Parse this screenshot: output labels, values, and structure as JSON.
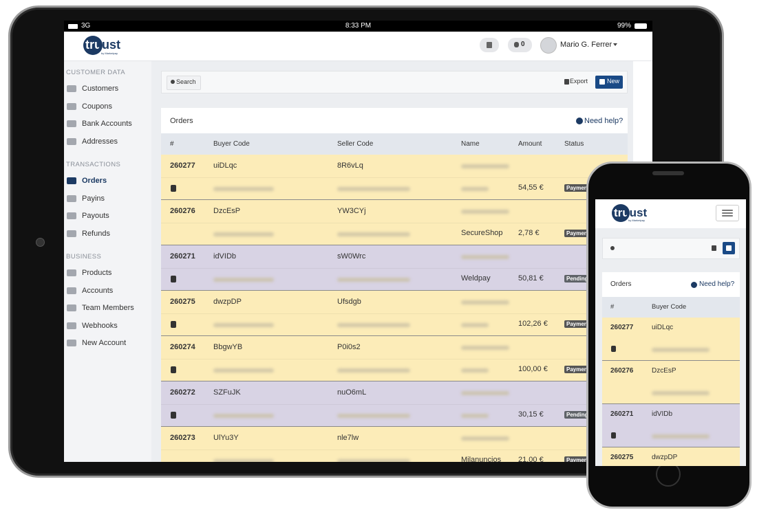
{
  "tablet": {
    "status_bar": {
      "signal": "3G",
      "time": "8:33 PM",
      "battery": "99%"
    },
    "header": {
      "logo": "truust",
      "logo_sub": "by Marketpay",
      "notifications": "0",
      "user": "Mario G. Ferrer"
    },
    "sidebar": [
      {
        "title": "CUSTOMER DATA",
        "items": [
          "Customers",
          "Coupons",
          "Bank Accounts",
          "Addresses"
        ]
      },
      {
        "title": "TRANSACTIONS",
        "items": [
          "Orders",
          "Payins",
          "Payouts",
          "Refunds"
        ],
        "active": 0
      },
      {
        "title": "BUSINESS",
        "items": [
          "Products",
          "Accounts",
          "Team Members",
          "Webhooks",
          "New Account"
        ]
      }
    ],
    "toolbar": {
      "search": "Search",
      "export": "Export",
      "new": "New"
    },
    "orders": {
      "title": "Orders",
      "help": "Need help?",
      "columns": [
        "#",
        "Buyer Code",
        "Seller Code",
        "Name",
        "Amount",
        "Status"
      ],
      "rows": [
        {
          "id": "260277",
          "buyer": "uiDLqc",
          "seller": "8R6vLq",
          "icon": true,
          "amount": "54,55 €",
          "status": "Payment"
        },
        {
          "id": "260276",
          "buyer": "DzcEsP",
          "seller": "YW3CYj",
          "icon": false,
          "name": "SecureShop",
          "amount": "2,78 €",
          "status": "Payment"
        },
        {
          "id": "260271",
          "buyer": "idVIDb",
          "seller": "sW0Wrc",
          "icon": true,
          "name": "Weldpay",
          "amount": "50,81 €",
          "status": "Pending"
        },
        {
          "id": "260275",
          "buyer": "dwzpDP",
          "seller": "Ufsdgb",
          "icon": true,
          "amount": "102,26 €",
          "status": "Payment"
        },
        {
          "id": "260274",
          "buyer": "BbgwYB",
          "seller": "P0i0s2",
          "icon": true,
          "amount": "100,00 €",
          "status": "Payment"
        },
        {
          "id": "260272",
          "buyer": "SZFuJK",
          "seller": "nuO6mL",
          "icon": true,
          "amount": "30,15 €",
          "status": "Pending"
        },
        {
          "id": "260273",
          "buyer": "UlYu3Y",
          "seller": "nle7lw",
          "icon": false,
          "name": "Milanuncios",
          "amount": "21,00 €",
          "status": "Payment"
        }
      ]
    }
  },
  "phone": {
    "rows_shown": 4
  }
}
